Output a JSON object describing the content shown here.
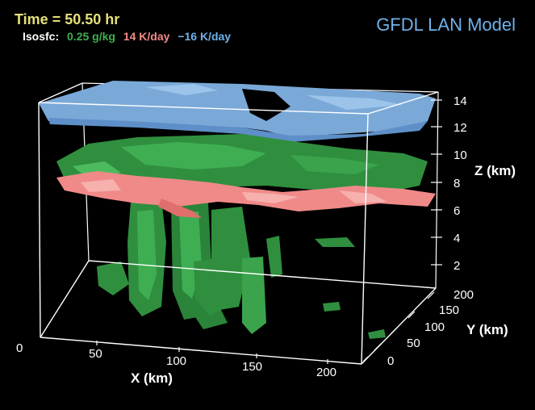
{
  "header": {
    "time_label": "Time = 50.50 hr",
    "isosfc_label": "Isosfc:",
    "iso_values": [
      {
        "text": "0.25 g/kg",
        "color": "#3fae52"
      },
      {
        "text": "14 K/day",
        "color": "#f08a88"
      },
      {
        "text": "−16 K/day",
        "color": "#6fb1ea"
      }
    ],
    "model_title": "GFDL LAN Model"
  },
  "axes": {
    "z": {
      "label": "Z (km)",
      "ticks": [
        "14",
        "12",
        "10",
        "8",
        "6",
        "4",
        "2"
      ]
    },
    "y": {
      "label": "Y (km)",
      "ticks": [
        "200",
        "150",
        "100",
        "50",
        "0"
      ]
    },
    "x": {
      "label": "X (km)",
      "ticks": [
        "0",
        "50",
        "100",
        "150",
        "200"
      ]
    }
  },
  "colors": {
    "moisture": "#2f9a44",
    "heating": "#f08080",
    "cooling": "#7fb0e0",
    "box": "#ffffff"
  }
}
